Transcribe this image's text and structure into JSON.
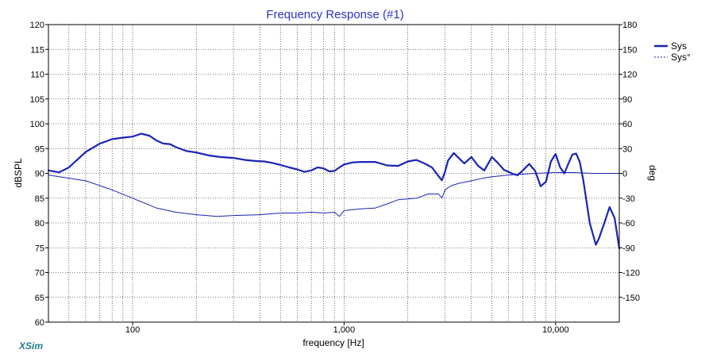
{
  "colors": {
    "title": "#2a32c8",
    "sys": "#1a24b4",
    "phase": "#1a24b4",
    "grid": "#000000",
    "brand": "#1f7a8c"
  },
  "brand": "XSim",
  "chart_data": {
    "type": "line",
    "title": "Frequency Response (#1)",
    "xlabel": "frequency [Hz]",
    "ylabel": "dBSPL",
    "y2label": "deg",
    "x_scale": "log",
    "xlim": [
      40,
      20000
    ],
    "ylim": [
      60,
      120
    ],
    "y2lim": [
      -180,
      180
    ],
    "grid": true,
    "legend_position": "top-right",
    "x_ticks": [
      {
        "value": 100,
        "label": "100"
      },
      {
        "value": 1000,
        "label": "1,000"
      },
      {
        "value": 10000,
        "label": "10,000"
      }
    ],
    "y_ticks": [
      "60",
      "65",
      "70",
      "75",
      "80",
      "85",
      "90",
      "95",
      "100",
      "105",
      "110",
      "115",
      "120"
    ],
    "y2_ticks": [
      "-150",
      "-120",
      "-90",
      "-60",
      "-30",
      "0",
      "30",
      "60",
      "90",
      "120",
      "150",
      "180"
    ],
    "series": [
      {
        "name": "Sys",
        "axis": "left",
        "x": [
          40,
          45,
          50,
          60,
          70,
          80,
          90,
          100,
          110,
          120,
          130,
          140,
          150,
          160,
          180,
          200,
          230,
          260,
          300,
          340,
          380,
          420,
          460,
          500,
          550,
          600,
          650,
          700,
          750,
          800,
          850,
          900,
          950,
          1000,
          1100,
          1200,
          1400,
          1600,
          1800,
          2000,
          2200,
          2400,
          2600,
          2800,
          2900,
          3000,
          3100,
          3300,
          3500,
          3700,
          4000,
          4300,
          4600,
          5000,
          5300,
          5700,
          6200,
          6600,
          7000,
          7500,
          8000,
          8500,
          9000,
          9500,
          10000,
          10500,
          11000,
          11500,
          12000,
          12500,
          13000,
          13500,
          14500,
          15500,
          16000,
          17000,
          18000,
          19000,
          20000
        ],
        "y": [
          90.6,
          90.2,
          91.2,
          94.3,
          96.0,
          96.9,
          97.2,
          97.4,
          98.0,
          97.6,
          96.6,
          96.0,
          95.9,
          95.3,
          94.5,
          94.2,
          93.6,
          93.3,
          93.1,
          92.7,
          92.5,
          92.4,
          92.1,
          91.7,
          91.2,
          90.8,
          90.3,
          90.6,
          91.2,
          91.0,
          90.4,
          90.5,
          91.2,
          91.8,
          92.2,
          92.3,
          92.3,
          91.6,
          91.5,
          92.4,
          92.7,
          92.0,
          91.2,
          89.4,
          88.6,
          90.3,
          92.6,
          94.1,
          93.0,
          92.0,
          93.3,
          91.5,
          90.6,
          93.3,
          92.2,
          90.7,
          90.0,
          89.6,
          90.6,
          91.9,
          90.5,
          87.4,
          88.3,
          92.4,
          93.9,
          91.2,
          90.0,
          92.0,
          93.8,
          94.0,
          92.3,
          88.8,
          80.0,
          75.6,
          76.8,
          80.0,
          83.2,
          81.0,
          74.9
        ]
      },
      {
        "name": "Sys°",
        "axis": "right",
        "x": [
          40,
          60,
          80,
          100,
          130,
          160,
          200,
          250,
          300,
          400,
          500,
          600,
          700,
          800,
          900,
          950,
          1000,
          1100,
          1200,
          1400,
          1600,
          1800,
          2000,
          2200,
          2500,
          2800,
          2900,
          3000,
          3200,
          3500,
          4000,
          4500,
          5000,
          6000,
          7000,
          8000,
          10000,
          12000,
          15000,
          20000
        ],
        "y": [
          -2,
          -9,
          -20,
          -30,
          -42,
          -47,
          -50,
          -52,
          -51,
          -50,
          -48,
          -48,
          -47,
          -48,
          -47,
          -52,
          -45,
          -44,
          -43,
          -42,
          -37,
          -32,
          -31,
          -30,
          -25,
          -25,
          -30,
          -20,
          -15,
          -12,
          -9,
          -6,
          -4,
          -2,
          -1,
          0,
          1,
          1,
          0,
          0
        ]
      }
    ]
  }
}
